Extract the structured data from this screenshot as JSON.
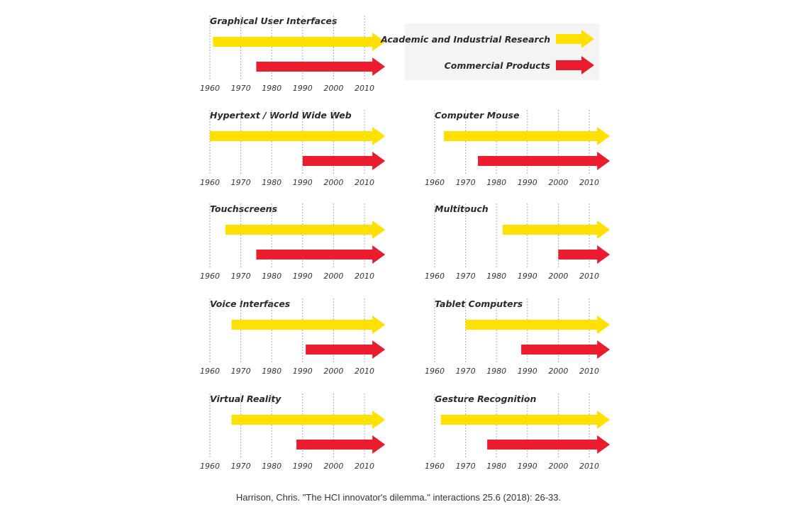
{
  "colors": {
    "research": "#FFE000",
    "commercial": "#EA1C2D",
    "legend_bg": "#F4F4F4",
    "grid": "#AAAAAA"
  },
  "legend": {
    "research_label": "Academic and Industrial Research",
    "commercial_label": "Commercial Products"
  },
  "caption": "Harrison, Chris. \"The HCI innovator's dilemma.\" interactions 25.6 (2018): 26-33.",
  "chart_data": [
    {
      "type": "bar",
      "title": "Graphical User Interfaces",
      "xlabel": "",
      "ylabel": "",
      "x_ticks": [
        1960,
        1970,
        1980,
        1990,
        2000,
        2010
      ],
      "xlim": [
        1960,
        2010
      ],
      "grid": true,
      "series": [
        {
          "name": "Academic and Industrial Research",
          "start": 1961,
          "end": 2016
        },
        {
          "name": "Commercial Products",
          "start": 1975,
          "end": 2016
        }
      ]
    },
    {
      "type": "bar",
      "title": "Hypertext / World Wide Web",
      "xlabel": "",
      "ylabel": "",
      "x_ticks": [
        1960,
        1970,
        1980,
        1990,
        2000,
        2010
      ],
      "xlim": [
        1960,
        2010
      ],
      "grid": true,
      "series": [
        {
          "name": "Academic and Industrial Research",
          "start": 1960,
          "end": 2016
        },
        {
          "name": "Commercial Products",
          "start": 1990,
          "end": 2016
        }
      ]
    },
    {
      "type": "bar",
      "title": "Computer Mouse",
      "xlabel": "",
      "ylabel": "",
      "x_ticks": [
        1960,
        1970,
        1980,
        1990,
        2000,
        2010
      ],
      "xlim": [
        1960,
        2010
      ],
      "grid": true,
      "series": [
        {
          "name": "Academic and Industrial Research",
          "start": 1963,
          "end": 2016
        },
        {
          "name": "Commercial Products",
          "start": 1974,
          "end": 2016
        }
      ]
    },
    {
      "type": "bar",
      "title": "Touchscreens",
      "xlabel": "",
      "ylabel": "",
      "x_ticks": [
        1960,
        1970,
        1980,
        1990,
        2000,
        2010
      ],
      "xlim": [
        1960,
        2010
      ],
      "grid": true,
      "series": [
        {
          "name": "Academic and Industrial Research",
          "start": 1965,
          "end": 2016
        },
        {
          "name": "Commercial Products",
          "start": 1975,
          "end": 2016
        }
      ]
    },
    {
      "type": "bar",
      "title": "Multitouch",
      "xlabel": "",
      "ylabel": "",
      "x_ticks": [
        1960,
        1970,
        1980,
        1990,
        2000,
        2010
      ],
      "xlim": [
        1960,
        2010
      ],
      "grid": true,
      "series": [
        {
          "name": "Academic and Industrial Research",
          "start": 1982,
          "end": 2016
        },
        {
          "name": "Commercial Products",
          "start": 2000,
          "end": 2016
        }
      ]
    },
    {
      "type": "bar",
      "title": "Voice Interfaces",
      "xlabel": "",
      "ylabel": "",
      "x_ticks": [
        1960,
        1970,
        1980,
        1990,
        2000,
        2010
      ],
      "xlim": [
        1960,
        2010
      ],
      "grid": true,
      "series": [
        {
          "name": "Academic and Industrial Research",
          "start": 1967,
          "end": 2016
        },
        {
          "name": "Commercial Products",
          "start": 1991,
          "end": 2016
        }
      ]
    },
    {
      "type": "bar",
      "title": "Tablet Computers",
      "xlabel": "",
      "ylabel": "",
      "x_ticks": [
        1960,
        1970,
        1980,
        1990,
        2000,
        2010
      ],
      "xlim": [
        1960,
        2010
      ],
      "grid": true,
      "series": [
        {
          "name": "Academic and Industrial Research",
          "start": 1970,
          "end": 2016
        },
        {
          "name": "Commercial Products",
          "start": 1988,
          "end": 2016
        }
      ]
    },
    {
      "type": "bar",
      "title": "Virtual Reality",
      "xlabel": "",
      "ylabel": "",
      "x_ticks": [
        1960,
        1970,
        1980,
        1990,
        2000,
        2010
      ],
      "xlim": [
        1960,
        2010
      ],
      "grid": true,
      "series": [
        {
          "name": "Academic and Industrial Research",
          "start": 1967,
          "end": 2016
        },
        {
          "name": "Commercial Products",
          "start": 1988,
          "end": 2016
        }
      ]
    },
    {
      "type": "bar",
      "title": "Gesture Recognition",
      "xlabel": "",
      "ylabel": "",
      "x_ticks": [
        1960,
        1970,
        1980,
        1990,
        2000,
        2010
      ],
      "xlim": [
        1960,
        2010
      ],
      "grid": true,
      "series": [
        {
          "name": "Academic and Industrial Research",
          "start": 1962,
          "end": 2016
        },
        {
          "name": "Commercial Products",
          "start": 1977,
          "end": 2016
        }
      ]
    }
  ]
}
